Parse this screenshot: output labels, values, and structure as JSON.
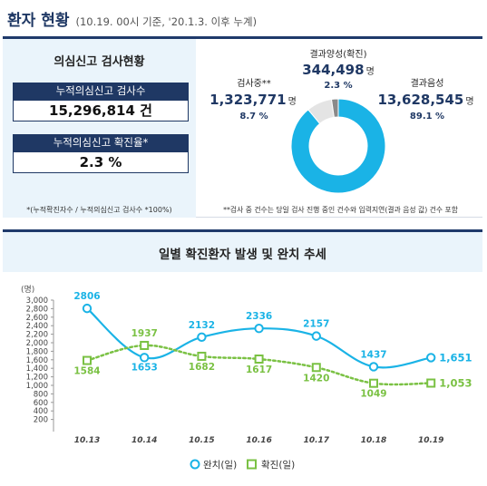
{
  "header": {
    "title": "환자 현황",
    "subtitle": "(10.19. 00시 기준, '20.1.3. 이후 누계)"
  },
  "test_summary": {
    "title": "의심신고 검사현황",
    "cumulative_tests_label": "누적의심신고 검사수",
    "cumulative_tests_value": "15,296,814 건",
    "positive_rate_label": "누적의심신고 확진율*",
    "positive_rate_value": "2.3 %",
    "footnote": "*(누적확진자수 / 누적의심신고 검사수 *100%)"
  },
  "donut": {
    "positive": {
      "label": "결과양성(확진)",
      "value": "344,498",
      "unit": "명",
      "percent": "2.3 %",
      "share": 2.3
    },
    "testing": {
      "label": "검사중**",
      "value": "1,323,771",
      "unit": "명",
      "percent": "8.7 %",
      "share": 8.7
    },
    "negative": {
      "label": "결과음성",
      "value": "13,628,545",
      "unit": "명",
      "percent": "89.1 %",
      "share": 89.1
    },
    "footnote": "**검사 중 건수는 당일 검사 진행 중인 건수와 입력지연(결과 음성 값) 건수 포함",
    "colors": {
      "positive": "#8a8a8a",
      "testing": "#e4e4e4",
      "negative": "#1ab3e6"
    }
  },
  "trend": {
    "title": "일별 확진환자 발생 및 완치 추세"
  },
  "chart_data": {
    "type": "line",
    "title": "일별 확진환자 발생 및 완치 추세",
    "ylabel": "(명)",
    "ylim": [
      0,
      3000
    ],
    "yticks": [
      200,
      400,
      600,
      800,
      1000,
      1200,
      1400,
      1600,
      1800,
      2000,
      2200,
      2400,
      2600,
      2800,
      3000
    ],
    "ytick_labels": [
      "200",
      "400",
      "600",
      "800",
      "1,000",
      "1,200",
      "1,400",
      "1,600",
      "1,800",
      "2,000",
      "2,200",
      "2,400",
      "2,600",
      "2,800",
      "3,000"
    ],
    "categories": [
      "10.13",
      "10.14",
      "10.15",
      "10.16",
      "10.17",
      "10.18",
      "10.19"
    ],
    "series": [
      {
        "name": "완치(일)",
        "values": [
          2806,
          1653,
          2132,
          2336,
          2157,
          1437,
          1651
        ],
        "labels": [
          "2806",
          "1653",
          "2132",
          "2336",
          "2157",
          "1437",
          "1,651"
        ],
        "color": "#1ab3e6",
        "style": "solid",
        "marker": "circle"
      },
      {
        "name": "확진(일)",
        "values": [
          1584,
          1937,
          1682,
          1617,
          1420,
          1049,
          1053
        ],
        "labels": [
          "1584",
          "1937",
          "1682",
          "1617",
          "1420",
          "1049",
          "1,053"
        ],
        "color": "#7ac143",
        "style": "dotted",
        "marker": "square"
      }
    ],
    "grid": false,
    "legend": "bottom-center"
  }
}
